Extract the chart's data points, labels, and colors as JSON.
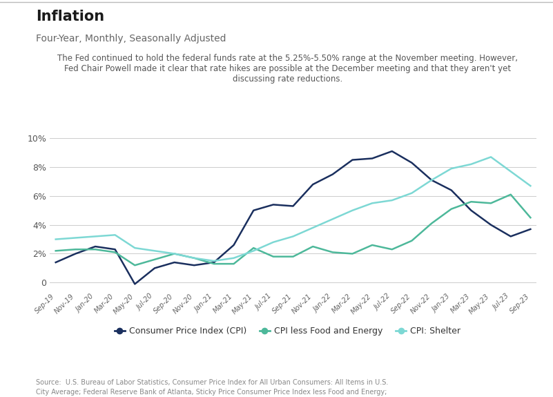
{
  "title": "Inflation",
  "subtitle": "Four-Year, Monthly, Seasonally Adjusted",
  "annotation_line1": "The Fed continued to hold the federal funds rate at the 5.25%-5.50% range at the November meeting. However,",
  "annotation_line2": "Fed Chair Powell made it clear that rate hikes are possible at the December meeting and that they aren't yet",
  "annotation_line3": "discussing rate reductions.",
  "source_text": "Source:  U.S. Bureau of Labor Statistics, Consumer Price Index for All Urban Consumers: All Items in U.S.\nCity Average; Federal Reserve Bank of Atlanta, Sticky Price Consumer Price Index less Food and Energy;\nU.S. Bureau of Labor Statistics, Consumer Price Index for All Urban Consumers: Shelter in U.S. City Average",
  "x_labels": [
    "Sep-19",
    "Nov-19",
    "Jan-20",
    "Mar-20",
    "May-20",
    "Jul-20",
    "Sep-20",
    "Nov-20",
    "Jan-21",
    "Mar-21",
    "May-21",
    "Jul-21",
    "Sep-21",
    "Nov-21",
    "Jan-22",
    "Mar-22",
    "May-22",
    "Jul-22",
    "Sep-22",
    "Nov-22",
    "Jan-23",
    "Mar-23",
    "May-23",
    "Jul-23",
    "Sep-23"
  ],
  "cpi": [
    1.4,
    2.0,
    2.5,
    2.3,
    -0.1,
    1.0,
    1.4,
    1.2,
    1.4,
    2.6,
    5.0,
    5.4,
    5.3,
    6.8,
    7.5,
    8.5,
    8.6,
    9.1,
    8.3,
    7.1,
    6.4,
    5.0,
    4.0,
    3.2,
    3.7
  ],
  "cpi_less": [
    2.2,
    2.3,
    2.3,
    2.1,
    1.2,
    1.6,
    2.0,
    1.7,
    1.3,
    1.3,
    2.4,
    1.8,
    1.8,
    2.5,
    2.1,
    2.0,
    2.6,
    2.3,
    2.9,
    4.1,
    5.1,
    5.6,
    5.5,
    6.1,
    4.5
  ],
  "cpi_shelter": [
    3.0,
    3.1,
    3.2,
    3.3,
    2.4,
    2.2,
    2.0,
    1.7,
    1.5,
    1.7,
    2.2,
    2.8,
    3.2,
    3.8,
    4.4,
    5.0,
    5.5,
    5.7,
    6.2,
    7.1,
    7.9,
    8.2,
    8.7,
    7.7,
    6.7
  ],
  "cpi_color": "#1a2f5e",
  "cpi_less_color": "#4db89a",
  "shelter_color": "#7dd8d4",
  "ylim": [
    -0.5,
    10.5
  ],
  "yticks": [
    0,
    2,
    4,
    6,
    8,
    10
  ],
  "ytick_labels": [
    "0",
    "2%",
    "4%",
    "6%",
    "8%",
    "10%"
  ],
  "background_color": "#ffffff",
  "grid_color": "#cccccc",
  "legend_labels": [
    "Consumer Price Index (CPI)",
    "CPI less Food and Energy",
    "CPI: Shelter"
  ]
}
